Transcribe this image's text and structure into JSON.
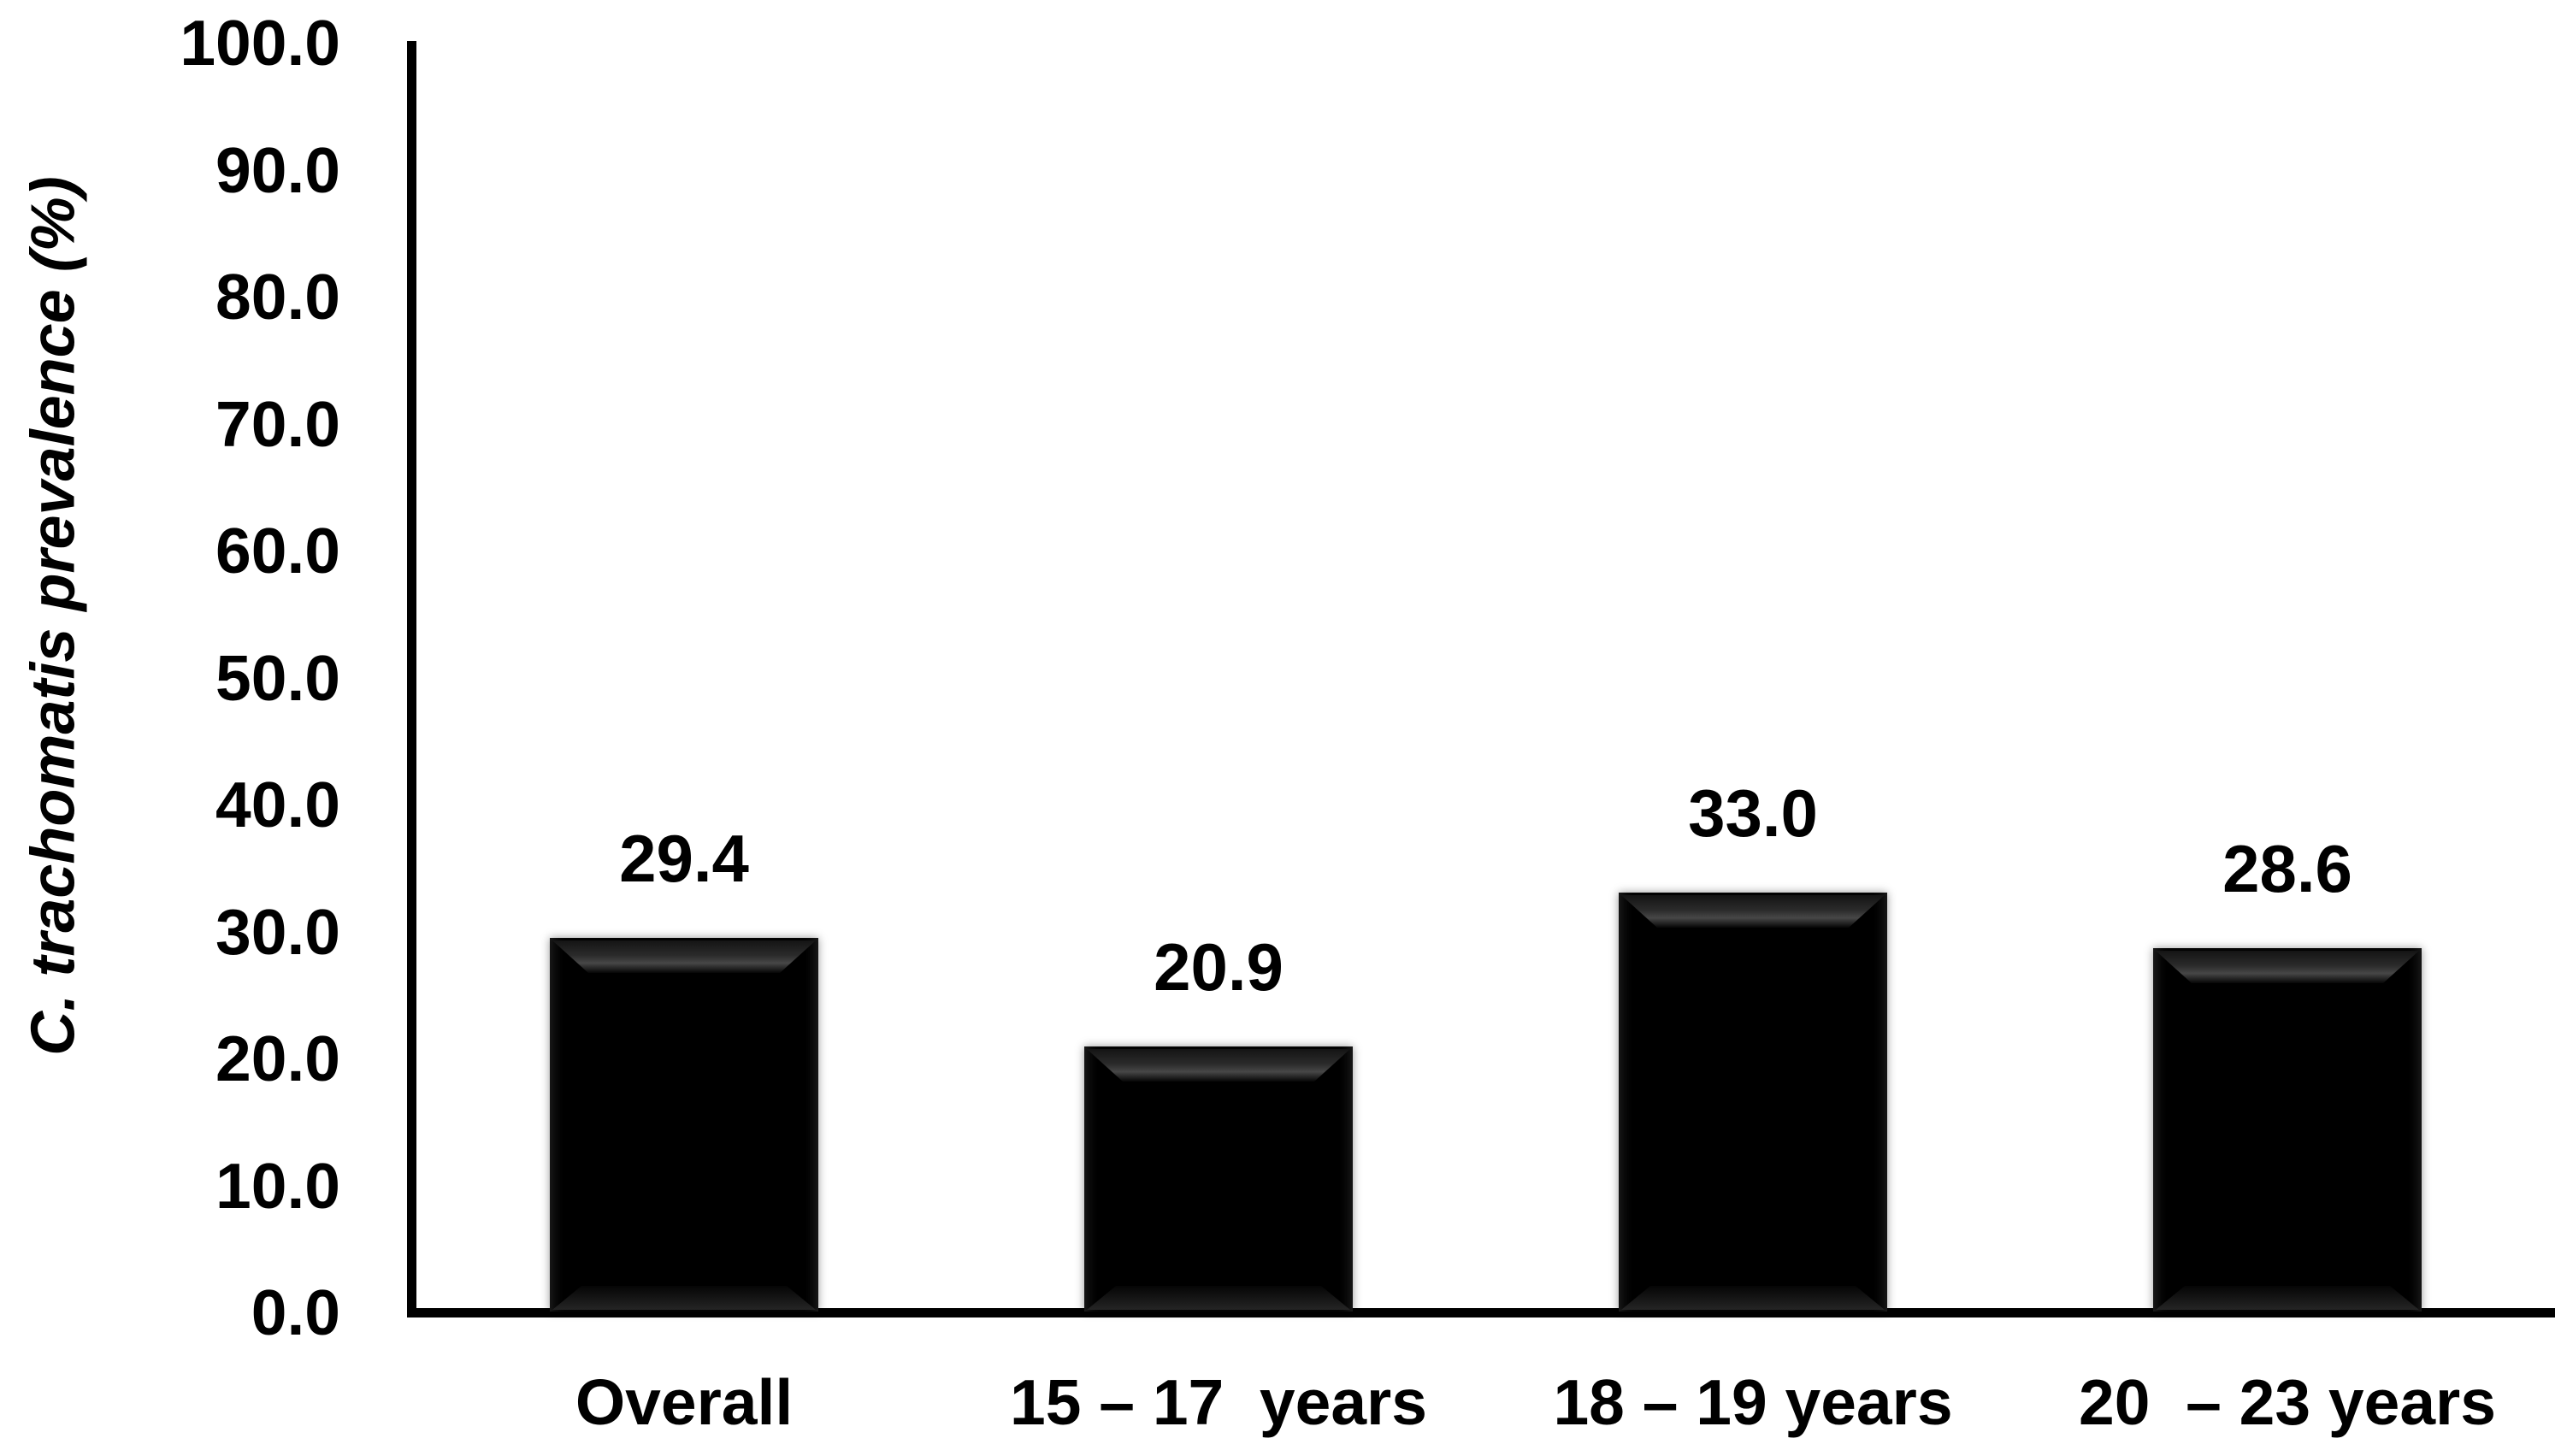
{
  "chart_data": {
    "type": "bar",
    "title": "",
    "ylabel": "C. trachomatis prevalence (%)",
    "xlabel": "",
    "categories": [
      "Overall",
      "15 – 17  years",
      "18 – 19 years",
      "20  – 23 years"
    ],
    "values": [
      29.4,
      20.9,
      33.0,
      28.6
    ],
    "data_labels": [
      "29.4",
      "20.9",
      "33.0",
      "28.6"
    ],
    "ylim": [
      0,
      100
    ],
    "ytick_step": 10,
    "ytick_labels": [
      "0.0",
      "10.0",
      "20.0",
      "30.0",
      "40.0",
      "50.0",
      "60.0",
      "70.0",
      "80.0",
      "90.0",
      "100.0"
    ],
    "grid": false,
    "legend_position": "none",
    "bar_color": "#000000",
    "text_color": "#000000",
    "background_color": "#ffffff"
  }
}
